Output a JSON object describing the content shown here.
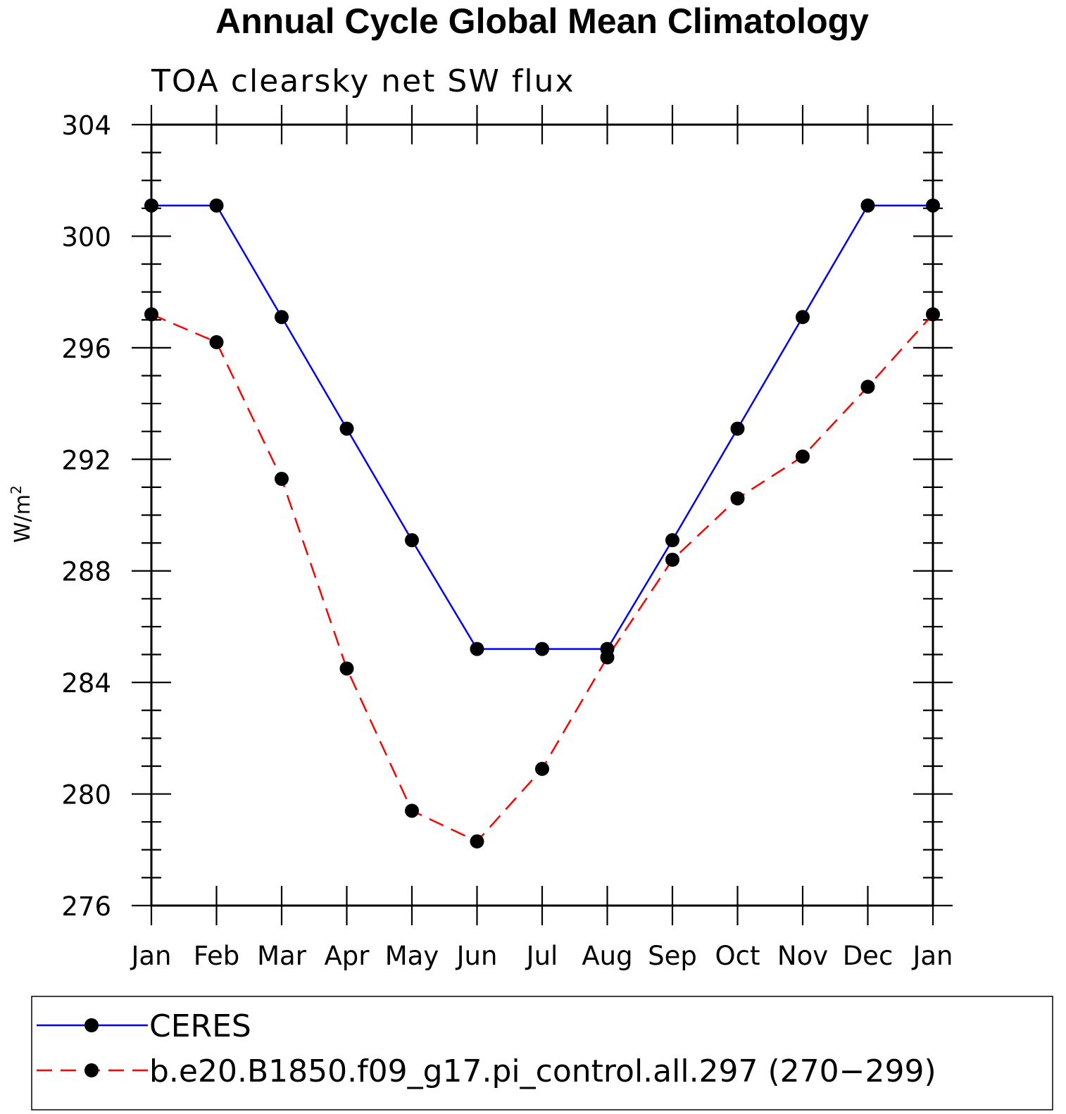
{
  "chart_data": {
    "type": "line",
    "title": "Annual Cycle Global Mean Climatology",
    "subtitle": "TOA clearsky net SW flux",
    "xlabel": "",
    "ylabel": "W/m",
    "ylabel_superscript": "2",
    "categories": [
      "Jan",
      "Feb",
      "Mar",
      "Apr",
      "May",
      "Jun",
      "Jul",
      "Aug",
      "Sep",
      "Oct",
      "Nov",
      "Dec",
      "Jan"
    ],
    "ylim": [
      276,
      304
    ],
    "yticks": [
      276,
      280,
      284,
      288,
      292,
      296,
      300,
      304
    ],
    "y_minor_step": 1,
    "grid": false,
    "legend_position": "bottom",
    "series": [
      {
        "name": "CERES",
        "color": "#0000ff",
        "dash": "solid",
        "marker": "filled-circle",
        "values": [
          301.1,
          301.1,
          297.1,
          293.1,
          289.1,
          285.2,
          285.2,
          285.2,
          289.1,
          293.1,
          297.1,
          301.1,
          301.1
        ]
      },
      {
        "name": "b.e20.B1850.f09_g17.pi_control.all.297 (270−299)",
        "color": "#ff0000",
        "dash": "dashed",
        "marker": "filled-circle",
        "values": [
          297.2,
          296.2,
          291.3,
          284.5,
          279.4,
          278.3,
          280.9,
          284.9,
          288.4,
          290.6,
          292.1,
          294.6,
          297.2
        ]
      }
    ]
  }
}
